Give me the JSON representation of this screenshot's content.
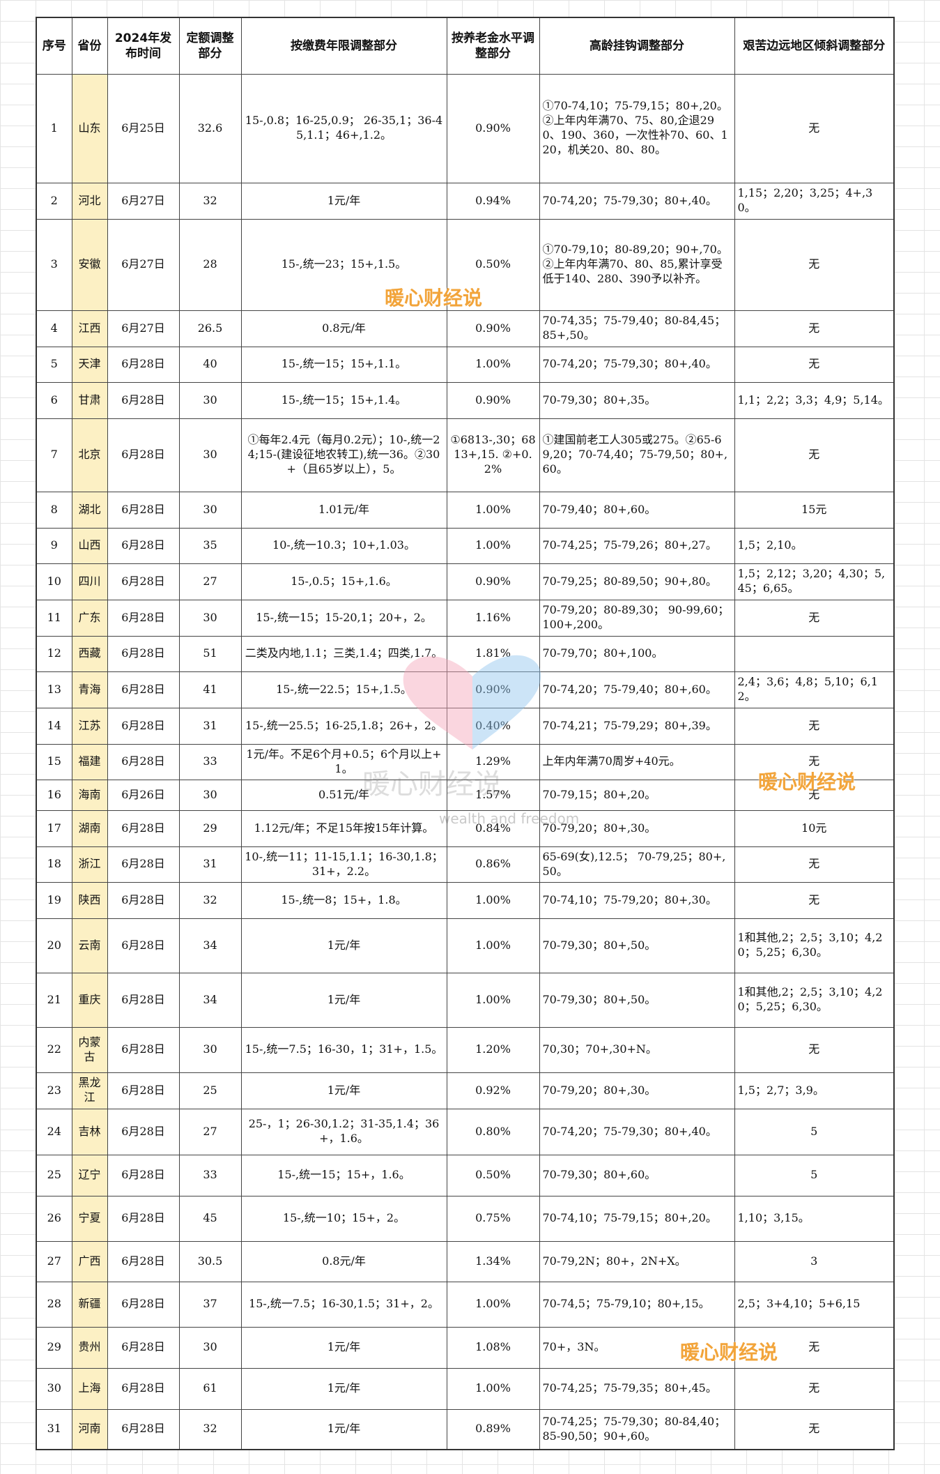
{
  "table": {
    "header": [
      "序号",
      "省份",
      "2024年发布时间",
      "定额调整部分",
      "按缴费年限调整部分",
      "按养老金水平调整部分",
      "高龄挂钩调整部分",
      "艰苦边远地区倾斜调整部分"
    ],
    "rows": [
      [
        "1",
        "山东",
        "6月25日",
        "32.6",
        "15-,0.8；16-25,0.9； 26-35,1；36-45,1.1；46+,1.2。",
        "0.90%",
        "①70-74,10；75-79,15；80+,20。 ②上年内年满70、75、80,企退290、190、360，一次性补70、60、120，机关20、80、80。",
        "无"
      ],
      [
        "2",
        "河北",
        "6月27日",
        "32",
        "1元/年",
        "0.94%",
        "70-74,20；75-79,30；80+,40。",
        "1,15；2,20；3,25；4+,30。"
      ],
      [
        "3",
        "安徽",
        "6月27日",
        "28",
        "15-,统一23；15+,1.5。",
        "0.50%",
        "①70-79,10；80-89,20；90+,70。 ②上年内年满70、80、85,累计享受低于140、280、390予以补齐。",
        "无"
      ],
      [
        "4",
        "江西",
        "6月27日",
        "26.5",
        "0.8元/年",
        "0.90%",
        "70-74,35；75-79,40；80-84,45；85+,50。",
        "无"
      ],
      [
        "5",
        "天津",
        "6月28日",
        "40",
        "15-,统一15；15+,1.1。",
        "1.00%",
        "70-74,20；75-79,30；80+,40。",
        "无"
      ],
      [
        "6",
        "甘肃",
        "6月28日",
        "30",
        "15-,统一15；15+,1.4。",
        "0.90%",
        "70-79,30；80+,35。",
        "1,1；2,2；3,3；4,9；5,14。"
      ],
      [
        "7",
        "北京",
        "6月28日",
        "30",
        "①每年2.4元（每月0.2元）；10-,统一24;15-(建设征地农转工),统一36。②30+（且65岁以上），5。",
        "①6813-,30；6813+,15. ②+0.2%",
        "①建国前老工人305或275。②65-69,20；70-74,40；75-79,50；80+,60。",
        "无"
      ],
      [
        "8",
        "湖北",
        "6月28日",
        "30",
        "1.01元/年",
        "1.00%",
        "70-79,40；80+,60。",
        "15元"
      ],
      [
        "9",
        "山西",
        "6月28日",
        "35",
        "10-,统一10.3；10+,1.03。",
        "1.00%",
        "70-74,25；75-79,26；80+,27。",
        "1,5；2,10。"
      ],
      [
        "10",
        "四川",
        "6月28日",
        "27",
        "15-,0.5；15+,1.6。",
        "0.90%",
        "70-79,25；80-89,50；90+,80。",
        "1,5；2,12；3,20；4,30；5,45；6,65。"
      ],
      [
        "11",
        "广东",
        "6月28日",
        "30",
        "15-,统一15；15-20,1；20+，2。",
        "1.16%",
        "70-79,20；80-89,30； 90-99,60；100+,200。",
        "无"
      ],
      [
        "12",
        "西藏",
        "6月28日",
        "51",
        "二类及内地,1.1；三类,1.4；四类,1.7。",
        "1.81%",
        "70-79,70；80+,100。",
        null
      ],
      [
        "13",
        "青海",
        "6月28日",
        "41",
        "15-,统一22.5；15+,1.5。",
        "0.90%",
        "70-74,20；75-79,40；80+,60。",
        "2,4；3,6；4,8；5,10；6,12。"
      ],
      [
        "14",
        "江苏",
        "6月28日",
        "31",
        "15-,统一25.5；16-25,1.8；26+，2。",
        "0.40%",
        "70-74,21；75-79,29；80+,39。",
        "无"
      ],
      [
        "15",
        "福建",
        "6月28日",
        "33",
        "1元/年。不足6个月+0.5；6个月以上+1。",
        "1.29%",
        "上年内年满70周岁+40元。",
        "无"
      ],
      [
        "16",
        "海南",
        "6月26日",
        "30",
        "0.51元/年",
        "1.57%",
        "70-79,15；80+,20。",
        "无"
      ],
      [
        "17",
        "湖南",
        "6月28日",
        "29",
        "1.12元/年；不足15年按15年计算。",
        "0.84%",
        "70-79,20；80+,30。",
        "10元"
      ],
      [
        "18",
        "浙江",
        "6月28日",
        "31",
        "10-,统一11；11-15,1.1；16-30,1.8；31+，2.2。",
        "0.86%",
        "65-69(女),12.5； 70-79,25；80+,50。",
        "无"
      ],
      [
        "19",
        "陕西",
        "6月28日",
        "32",
        "15-,统一8；15+，1.8。",
        "1.00%",
        "70-74,10；75-79,20；80+,30。",
        "无"
      ],
      [
        "20",
        "云南",
        "6月28日",
        "34",
        "1元/年",
        "1.00%",
        "70-79,30；80+,50。",
        "1和其他,2；2,5；3,10；4,20；5,25；6,30。"
      ],
      [
        "21",
        "重庆",
        "6月28日",
        "34",
        "1元/年",
        "1.00%",
        "70-79,30；80+,50。",
        "1和其他,2；2,5；3,10；4,20；5,25；6,30。"
      ],
      [
        "22",
        "内蒙古",
        "6月28日",
        "30",
        "15-,统一7.5；16-30，1；31+，1.5。",
        "1.20%",
        "70,30；70+,30+N。",
        "无"
      ],
      [
        "23",
        "黑龙江",
        "6月28日",
        "25",
        "1元/年",
        "0.92%",
        "70-79,20；80+,30。",
        "1,5；2,7；3,9。"
      ],
      [
        "24",
        "吉林",
        "6月28日",
        "27",
        "25-，1；26-30,1.2；31-35,1.4；36+，1.6。",
        "0.80%",
        "70-74,20；75-79,30；80+,40。",
        "5"
      ],
      [
        "25",
        "辽宁",
        "6月28日",
        "33",
        "15-,统一15；15+，1.6。",
        "0.50%",
        "70-79,30；80+,60。",
        "5"
      ],
      [
        "26",
        "宁夏",
        "6月28日",
        "45",
        "15-,统一10；15+，2。",
        "0.75%",
        "70-74,10；75-79,15；80+,20。",
        "1,10；3,15。"
      ],
      [
        "27",
        "广西",
        "6月28日",
        "30.5",
        "0.8元/年",
        "1.34%",
        "70-79,2N；80+，2N+X。",
        "3"
      ],
      [
        "28",
        "新疆",
        "6月28日",
        "37",
        "15-,统一7.5；16-30,1.5；31+，2。",
        "1.00%",
        "70-74,5；75-79,10；80+,15。",
        "2,5；3+4,10；5+6,15"
      ],
      [
        "29",
        "贵州",
        "6月28日",
        "30",
        "1元/年",
        "1.08%",
        "70+，3N。",
        "无"
      ],
      [
        "30",
        "上海",
        "6月28日",
        "61",
        "1元/年",
        "1.00%",
        "70-74,25；75-79,35；80+,45。",
        "无"
      ],
      [
        "31",
        "河南",
        "6月28日",
        "32",
        "1元/年",
        "0.89%",
        "70-74,25；75-79,30；80-84,40；85-90,50；90+,60。",
        "无"
      ]
    ]
  },
  "watermarks": [
    "暖心财经说",
    "暖心财经说",
    "暖心财经说",
    "暖心财经说",
    "wealth and freedom"
  ]
}
